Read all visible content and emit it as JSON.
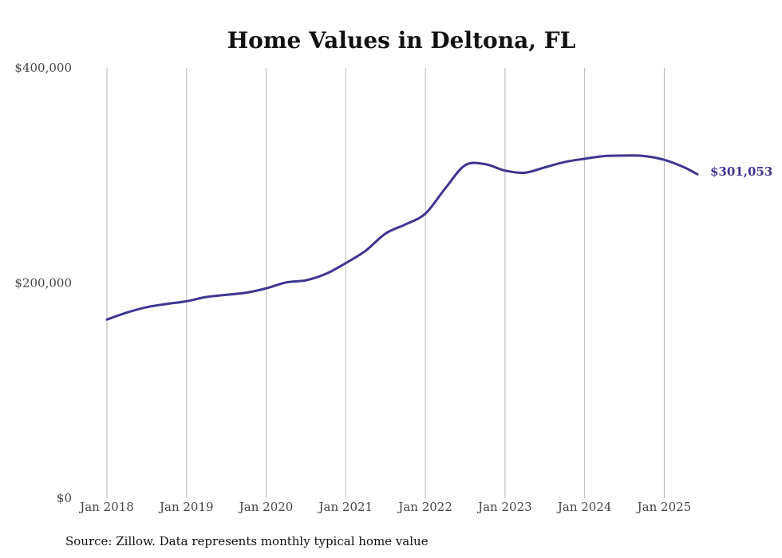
{
  "chart_data": {
    "type": "line",
    "title": "Home Values in Deltona, FL",
    "xlabel": "",
    "ylabel": "",
    "ylim": [
      0,
      400000
    ],
    "y_ticks": [
      0,
      200000,
      400000
    ],
    "y_tick_labels": [
      "$0",
      "$200,000",
      "$400,000"
    ],
    "x_ticks": [
      "2018-01",
      "2019-01",
      "2020-01",
      "2021-01",
      "2022-01",
      "2023-01",
      "2024-01",
      "2025-01"
    ],
    "x_tick_labels": [
      "Jan 2018",
      "Jan 2019",
      "Jan 2020",
      "Jan 2021",
      "Jan 2022",
      "Jan 2023",
      "Jan 2024",
      "Jan 2025"
    ],
    "grid": {
      "vertical": true,
      "horizontal": false
    },
    "series": [
      {
        "x": [
          "2018-01",
          "2018-04",
          "2018-07",
          "2018-10",
          "2019-01",
          "2019-04",
          "2019-07",
          "2019-10",
          "2020-01",
          "2020-04",
          "2020-07",
          "2020-10",
          "2021-01",
          "2021-04",
          "2021-07",
          "2021-10",
          "2022-01",
          "2022-04",
          "2022-07",
          "2022-10",
          "2023-01",
          "2023-04",
          "2023-07",
          "2023-10",
          "2024-01",
          "2024-04",
          "2024-07",
          "2024-10",
          "2025-01",
          "2025-04",
          "2025-06"
        ],
        "values": [
          166000,
          172500,
          177500,
          180500,
          183000,
          187000,
          189000,
          191000,
          195000,
          200500,
          202500,
          208500,
          218500,
          230000,
          246000,
          254500,
          264500,
          288000,
          309500,
          310500,
          304500,
          302500,
          307500,
          312500,
          315500,
          318000,
          318500,
          318000,
          314500,
          307500,
          301053
        ]
      }
    ],
    "end_label": "$301,053",
    "colors": {
      "line": "#3d3590",
      "grid": "#b5b5b5",
      "text": "#444444"
    }
  },
  "source_note": "Source: Zillow. Data represents monthly typical home value"
}
